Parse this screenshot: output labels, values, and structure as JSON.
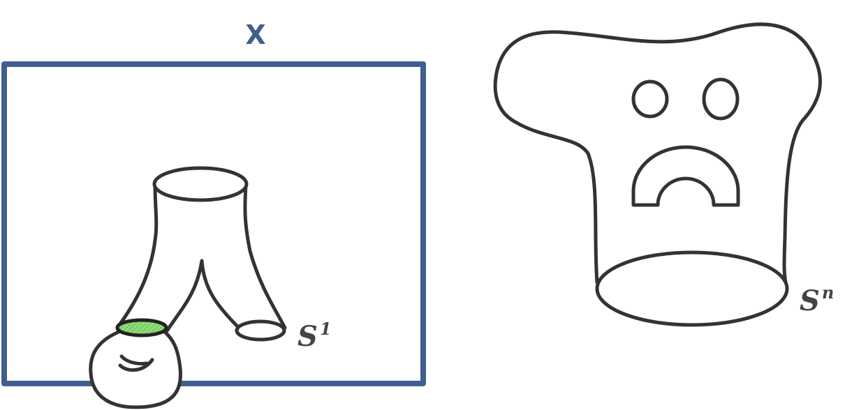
{
  "labels": {
    "space": "X",
    "circle_base": "S",
    "circle_exp": "1",
    "sphere_base": "S",
    "sphere_exp": "n"
  },
  "colors": {
    "frame": "#3f5f8f",
    "outline": "#333333",
    "boundary_fill": "#8fdc7a"
  }
}
